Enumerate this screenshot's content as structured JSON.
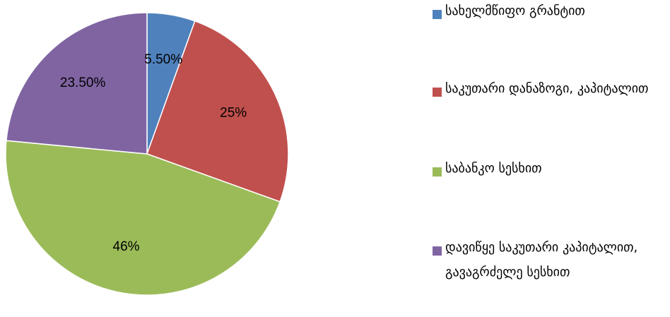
{
  "chart_data": {
    "type": "pie",
    "categories": [
      "სახელმწიფო გრანტით",
      "საკუთარი დანაზოგი, კაპიტალით",
      "საბანკო სესხით",
      "დავიწყე საკუთარი კაპიტალით, გავაგრძელე სესხით"
    ],
    "values": [
      5.5,
      25,
      46,
      23.5
    ],
    "value_labels": [
      "5.50%",
      "25%",
      "46%",
      "23.50%"
    ],
    "colors": [
      "#4f81bd",
      "#c0504d",
      "#9bbb59",
      "#8064a2"
    ],
    "legend": "right"
  }
}
